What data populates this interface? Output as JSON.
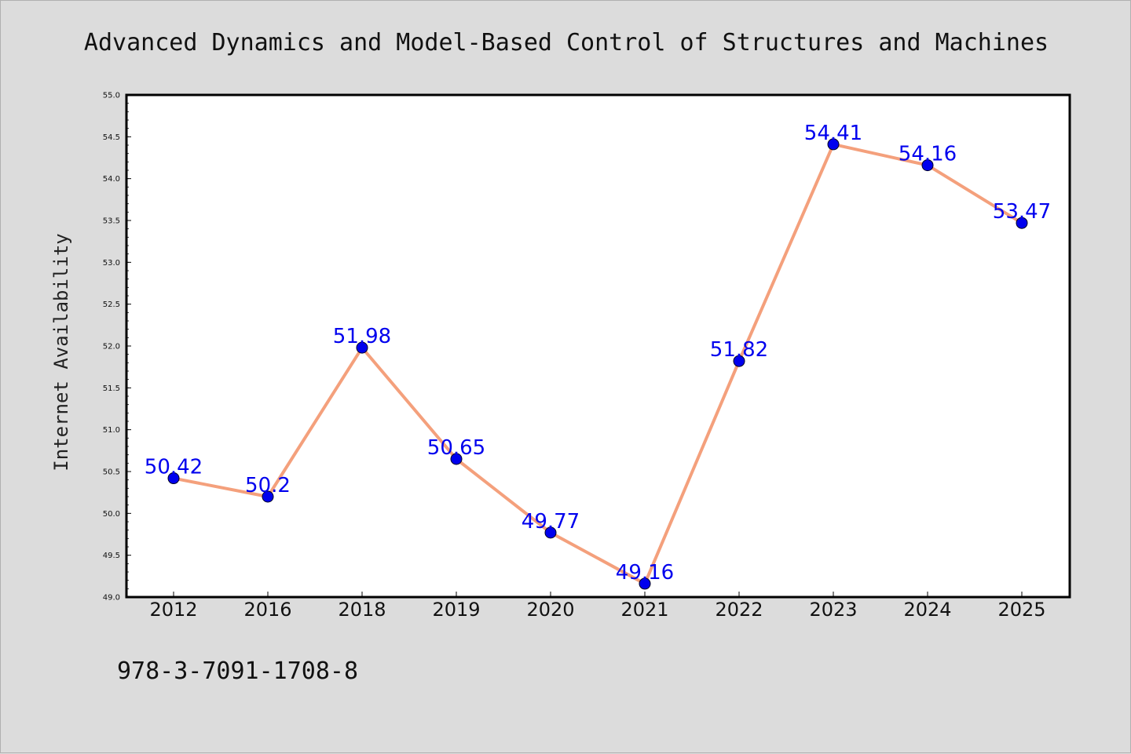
{
  "figure": {
    "title": "Advanced Dynamics and Model-Based Control of Structures and Machines",
    "footer_text": "978-3-7091-1708-8",
    "background_color": "#dcdcdc"
  },
  "chart_data": {
    "type": "line",
    "title": "Advanced Dynamics and Model-Based Control of Structures and Machines",
    "xlabel": "",
    "ylabel": "Internet Availability",
    "categories": [
      "2012",
      "2016",
      "2018",
      "2019",
      "2020",
      "2021",
      "2022",
      "2023",
      "2024",
      "2025"
    ],
    "series": [
      {
        "values": [
          50.42,
          50.2,
          51.98,
          50.65,
          49.77,
          49.16,
          51.82,
          54.41,
          54.16,
          53.47
        ],
        "data_labels": [
          "50.42",
          "50.2",
          "51.98",
          "50.65",
          "49.77",
          "49.16",
          "51.82",
          "54.41",
          "54.16",
          "53.47"
        ],
        "line_color": "#f4a07c",
        "marker_color": "#0000ee",
        "label_color": "#0000ee"
      }
    ],
    "ylim": [
      49.0,
      55.0
    ],
    "yticks": [
      "49.0",
      "49.5",
      "50.0",
      "50.5",
      "51.0",
      "51.5",
      "52.0",
      "52.5",
      "53.0",
      "53.5",
      "54.0",
      "54.5",
      "55.0"
    ],
    "grid": false,
    "legend": "none"
  }
}
